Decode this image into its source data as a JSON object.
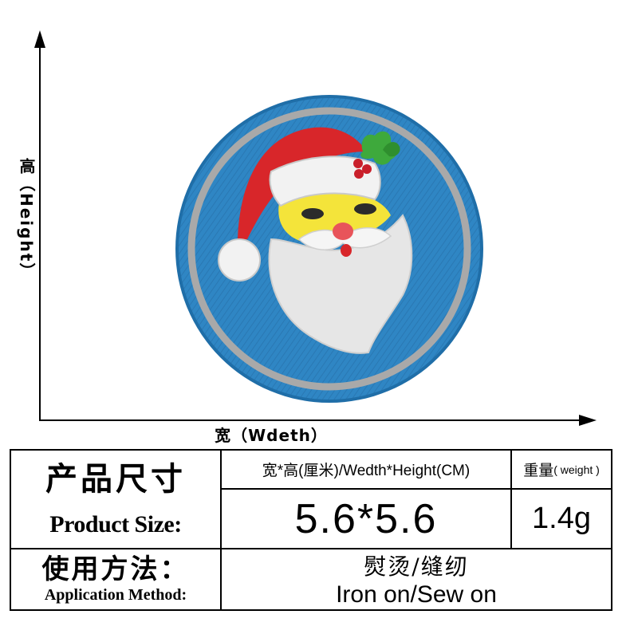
{
  "axes": {
    "x_label": "宽（Wdeth）",
    "y_label": "高（Height）"
  },
  "patch": {
    "colors": {
      "background": "#2f86c4",
      "ring": "#a9a9a9",
      "hat_red": "#d8262a",
      "fur_white": "#f2f2f2",
      "beard": "#e6e6e6",
      "face": "#f4e43a",
      "holly_green": "#3ea93c",
      "berry_red": "#c91f2a"
    }
  },
  "spec": {
    "product_size_cn": "产品尺寸",
    "product_size_en": "Product Size:",
    "dimension_header": "宽*高(厘米)/Wedth*Height(CM)",
    "weight_header_cn": "重量",
    "weight_header_en": "( weight )",
    "dimension_value": "5.6*5.6",
    "weight_value": "1.4g",
    "application_cn": "使用方法：",
    "application_en": "Application Method:",
    "method_cn": "熨烫/缝纫",
    "method_en": "Iron on/Sew on"
  }
}
